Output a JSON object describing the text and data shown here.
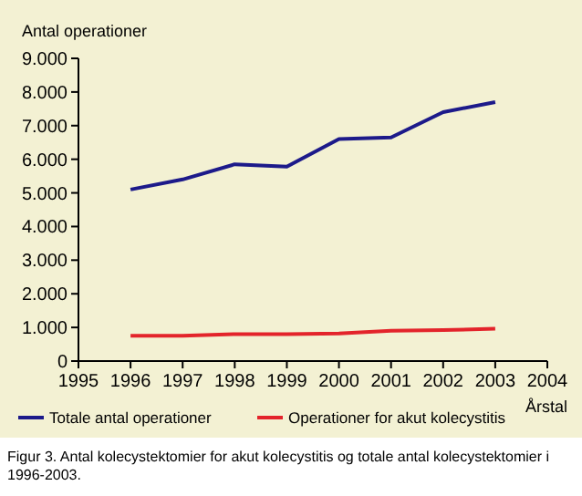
{
  "chart_data": {
    "type": "line",
    "ylabel": "Antal operationer",
    "xlabel": "Årstal",
    "x": [
      1996,
      1997,
      1998,
      1999,
      2000,
      2001,
      2002,
      2003
    ],
    "series": [
      {
        "name": "Totale antal operationer",
        "color": "#1c1a8a",
        "values": [
          5100,
          5400,
          5850,
          5780,
          6600,
          6650,
          7400,
          7700
        ]
      },
      {
        "name": "Operationer for akut kolecystitis",
        "color": "#e3242b",
        "values": [
          750,
          750,
          800,
          800,
          820,
          900,
          920,
          960
        ]
      }
    ],
    "xlim": [
      1995,
      2004
    ],
    "xticks": [
      1995,
      1996,
      1997,
      1998,
      1999,
      2000,
      2001,
      2002,
      2003,
      2004
    ],
    "ylim": [
      0,
      9000
    ],
    "yticks": [
      {
        "value": 0,
        "label": "0"
      },
      {
        "value": 1000,
        "label": "1.000"
      },
      {
        "value": 2000,
        "label": "2.000"
      },
      {
        "value": 3000,
        "label": "3.000"
      },
      {
        "value": 4000,
        "label": "4.000"
      },
      {
        "value": 5000,
        "label": "5.000"
      },
      {
        "value": 6000,
        "label": "6.000"
      },
      {
        "value": 7000,
        "label": "7.000"
      },
      {
        "value": 8000,
        "label": "8.000"
      },
      {
        "value": 9000,
        "label": "9.000"
      }
    ],
    "legend": "bottom",
    "grid": false,
    "marker": "none",
    "line_style": "solid",
    "annotations": [
      "Figur 3. Antal kolecystektomier for akut kolecystitis og totale antal kolecystektomier i 1996-2003."
    ]
  }
}
